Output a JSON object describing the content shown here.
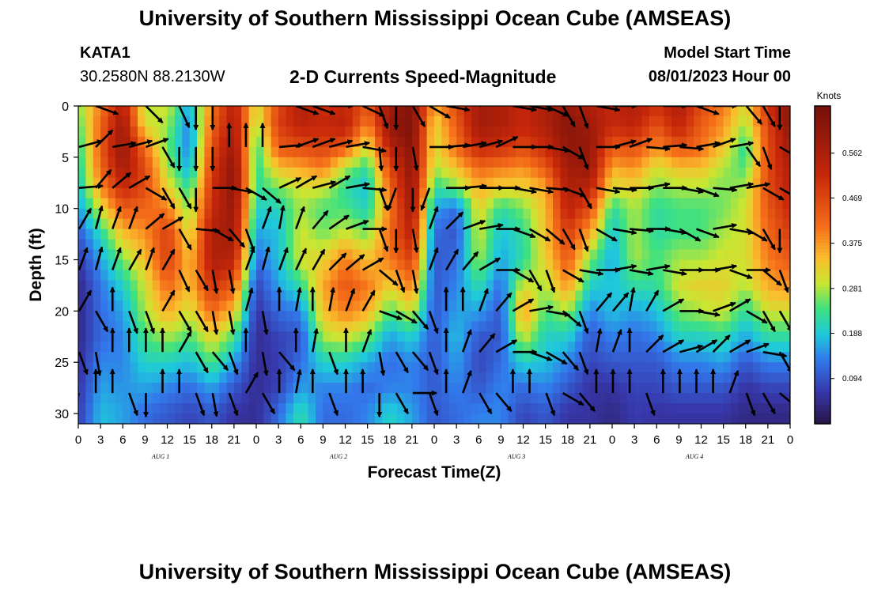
{
  "header": {
    "title": "University of Southern Mississippi Ocean Cube (AMSEAS)",
    "station": "KATA1",
    "coords": "30.2580N  88.2130W",
    "subtitle": "2-D Currents Speed-Magnitude",
    "model_start_label": "Model Start Time",
    "model_start_value": "08/01/2023 Hour 00"
  },
  "footer": {
    "title": "University of Southern Mississippi Ocean Cube (AMSEAS)"
  },
  "chart_data": {
    "type": "heatmap",
    "title": "2-D Currents Speed-Magnitude",
    "xlabel": "Forecast Time(Z)",
    "ylabel": "Depth (ft)",
    "x_ticks": [
      "0",
      "3",
      "6",
      "9",
      "12",
      "15",
      "18",
      "21",
      "0",
      "3",
      "6",
      "9",
      "12",
      "15",
      "18",
      "21",
      "0",
      "3",
      "6",
      "9",
      "12",
      "15",
      "18",
      "21",
      "0",
      "3",
      "6",
      "9",
      "12",
      "15",
      "18",
      "21",
      "0"
    ],
    "day_labels": [
      "AUG 1",
      "AUG 2",
      "AUG 3",
      "AUG 4"
    ],
    "y_ticks": [
      "0",
      "5",
      "10",
      "15",
      "20",
      "25",
      "30"
    ],
    "x_range_hours": [
      0,
      96
    ],
    "y_range_ft": [
      0,
      31
    ],
    "colorbar": {
      "unit": "Knots",
      "ticks": [
        "0.094",
        "0.188",
        "0.281",
        "0.375",
        "0.469",
        "0.562"
      ],
      "tick_values": [
        0.094,
        0.188,
        0.281,
        0.375,
        0.469,
        0.562
      ],
      "range": [
        0.0,
        0.66
      ]
    },
    "depth_levels_ft": [
      0,
      1.5,
      3,
      4.5,
      6,
      8,
      10,
      12.5,
      15,
      17.5,
      20,
      22.5,
      25,
      27.5,
      30,
      31
    ],
    "speed_timeseries": [
      {
        "hour": 0,
        "speeds": [
          0.26,
          0.24,
          0.22,
          0.21,
          0.2,
          0.18,
          0.15,
          0.1,
          0.06,
          0.04,
          0.04,
          0.04,
          0.05,
          0.06,
          0.07,
          0.07
        ]
      },
      {
        "hour": 3,
        "speeds": [
          0.4,
          0.42,
          0.43,
          0.43,
          0.42,
          0.38,
          0.3,
          0.21,
          0.16,
          0.13,
          0.12,
          0.12,
          0.14,
          0.16,
          0.18,
          0.18
        ]
      },
      {
        "hour": 6,
        "speeds": [
          0.55,
          0.58,
          0.6,
          0.6,
          0.58,
          0.52,
          0.44,
          0.34,
          0.26,
          0.2,
          0.16,
          0.14,
          0.14,
          0.15,
          0.16,
          0.16
        ]
      },
      {
        "hour": 9,
        "speeds": [
          0.28,
          0.3,
          0.36,
          0.42,
          0.46,
          0.46,
          0.42,
          0.38,
          0.34,
          0.3,
          0.28,
          0.24,
          0.2,
          0.16,
          0.12,
          0.12
        ]
      },
      {
        "hour": 12,
        "speeds": [
          0.3,
          0.28,
          0.26,
          0.26,
          0.28,
          0.32,
          0.4,
          0.48,
          0.48,
          0.42,
          0.36,
          0.28,
          0.2,
          0.14,
          0.1,
          0.1
        ]
      },
      {
        "hour": 15,
        "speeds": [
          0.16,
          0.14,
          0.13,
          0.14,
          0.16,
          0.22,
          0.26,
          0.3,
          0.34,
          0.34,
          0.3,
          0.24,
          0.18,
          0.12,
          0.08,
          0.08
        ]
      },
      {
        "hour": 18,
        "speeds": [
          0.4,
          0.42,
          0.44,
          0.46,
          0.48,
          0.5,
          0.52,
          0.56,
          0.56,
          0.5,
          0.42,
          0.32,
          0.24,
          0.16,
          0.1,
          0.1
        ]
      },
      {
        "hour": 21,
        "speeds": [
          0.55,
          0.56,
          0.58,
          0.6,
          0.62,
          0.62,
          0.6,
          0.58,
          0.54,
          0.44,
          0.34,
          0.24,
          0.16,
          0.1,
          0.06,
          0.06
        ]
      },
      {
        "hour": 24,
        "speeds": [
          0.3,
          0.28,
          0.24,
          0.22,
          0.22,
          0.22,
          0.2,
          0.16,
          0.12,
          0.08,
          0.06,
          0.05,
          0.05,
          0.05,
          0.05,
          0.05
        ]
      },
      {
        "hour": 27,
        "speeds": [
          0.46,
          0.48,
          0.46,
          0.42,
          0.34,
          0.26,
          0.2,
          0.18,
          0.18,
          0.16,
          0.12,
          0.08,
          0.07,
          0.08,
          0.12,
          0.12
        ]
      },
      {
        "hour": 30,
        "speeds": [
          0.56,
          0.54,
          0.5,
          0.44,
          0.36,
          0.3,
          0.28,
          0.3,
          0.3,
          0.22,
          0.14,
          0.1,
          0.12,
          0.16,
          0.22,
          0.22
        ]
      },
      {
        "hour": 33,
        "speeds": [
          0.5,
          0.52,
          0.5,
          0.46,
          0.4,
          0.3,
          0.24,
          0.26,
          0.32,
          0.36,
          0.34,
          0.28,
          0.2,
          0.14,
          0.12,
          0.12
        ]
      },
      {
        "hour": 36,
        "speeds": [
          0.52,
          0.54,
          0.5,
          0.4,
          0.28,
          0.22,
          0.24,
          0.3,
          0.4,
          0.44,
          0.4,
          0.3,
          0.2,
          0.14,
          0.12,
          0.12
        ]
      },
      {
        "hour": 39,
        "speeds": [
          0.44,
          0.4,
          0.34,
          0.28,
          0.22,
          0.18,
          0.2,
          0.26,
          0.34,
          0.4,
          0.36,
          0.26,
          0.16,
          0.12,
          0.14,
          0.14
        ]
      },
      {
        "hour": 42,
        "speeds": [
          0.58,
          0.6,
          0.58,
          0.52,
          0.46,
          0.42,
          0.4,
          0.42,
          0.4,
          0.32,
          0.24,
          0.16,
          0.12,
          0.14,
          0.2,
          0.2
        ]
      },
      {
        "hour": 45,
        "speeds": [
          0.64,
          0.64,
          0.64,
          0.62,
          0.62,
          0.6,
          0.58,
          0.54,
          0.48,
          0.4,
          0.3,
          0.2,
          0.14,
          0.14,
          0.16,
          0.16
        ]
      },
      {
        "hour": 48,
        "speeds": [
          0.36,
          0.32,
          0.3,
          0.3,
          0.28,
          0.22,
          0.16,
          0.12,
          0.1,
          0.1,
          0.1,
          0.1,
          0.1,
          0.1,
          0.1,
          0.1
        ]
      },
      {
        "hour": 51,
        "speeds": [
          0.46,
          0.44,
          0.42,
          0.4,
          0.34,
          0.26,
          0.12,
          0.1,
          0.12,
          0.14,
          0.16,
          0.18,
          0.16,
          0.14,
          0.12,
          0.12
        ]
      },
      {
        "hour": 54,
        "speeds": [
          0.58,
          0.58,
          0.56,
          0.5,
          0.42,
          0.36,
          0.32,
          0.3,
          0.28,
          0.22,
          0.16,
          0.1,
          0.08,
          0.1,
          0.14,
          0.14
        ]
      },
      {
        "hour": 57,
        "speeds": [
          0.56,
          0.56,
          0.54,
          0.48,
          0.4,
          0.32,
          0.22,
          0.18,
          0.16,
          0.12,
          0.1,
          0.1,
          0.12,
          0.14,
          0.14,
          0.14
        ]
      },
      {
        "hour": 60,
        "speeds": [
          0.52,
          0.52,
          0.5,
          0.44,
          0.38,
          0.32,
          0.26,
          0.22,
          0.22,
          0.3,
          0.38,
          0.3,
          0.2,
          0.12,
          0.08,
          0.08
        ]
      },
      {
        "hour": 63,
        "speeds": [
          0.56,
          0.56,
          0.54,
          0.5,
          0.44,
          0.36,
          0.34,
          0.34,
          0.32,
          0.28,
          0.24,
          0.2,
          0.18,
          0.14,
          0.1,
          0.1
        ]
      },
      {
        "hour": 66,
        "speeds": [
          0.6,
          0.62,
          0.62,
          0.6,
          0.58,
          0.56,
          0.54,
          0.48,
          0.44,
          0.38,
          0.28,
          0.2,
          0.14,
          0.1,
          0.06,
          0.06
        ]
      },
      {
        "hour": 69,
        "speeds": [
          0.56,
          0.58,
          0.6,
          0.6,
          0.6,
          0.54,
          0.46,
          0.36,
          0.26,
          0.2,
          0.14,
          0.1,
          0.08,
          0.06,
          0.06,
          0.06
        ]
      },
      {
        "hour": 72,
        "speeds": [
          0.52,
          0.52,
          0.48,
          0.42,
          0.36,
          0.3,
          0.22,
          0.18,
          0.16,
          0.18,
          0.18,
          0.14,
          0.1,
          0.06,
          0.04,
          0.04
        ]
      },
      {
        "hour": 75,
        "speeds": [
          0.56,
          0.54,
          0.5,
          0.44,
          0.38,
          0.32,
          0.28,
          0.28,
          0.28,
          0.22,
          0.16,
          0.12,
          0.1,
          0.08,
          0.07,
          0.07
        ]
      },
      {
        "hour": 78,
        "speeds": [
          0.5,
          0.46,
          0.42,
          0.36,
          0.3,
          0.26,
          0.22,
          0.22,
          0.24,
          0.22,
          0.18,
          0.14,
          0.1,
          0.08,
          0.06,
          0.06
        ]
      },
      {
        "hour": 81,
        "speeds": [
          0.56,
          0.54,
          0.5,
          0.42,
          0.34,
          0.28,
          0.24,
          0.24,
          0.28,
          0.3,
          0.26,
          0.2,
          0.14,
          0.1,
          0.06,
          0.06
        ]
      },
      {
        "hour": 84,
        "speeds": [
          0.46,
          0.44,
          0.42,
          0.4,
          0.34,
          0.28,
          0.24,
          0.24,
          0.28,
          0.32,
          0.28,
          0.2,
          0.14,
          0.1,
          0.06,
          0.06
        ]
      },
      {
        "hour": 87,
        "speeds": [
          0.4,
          0.38,
          0.36,
          0.32,
          0.28,
          0.26,
          0.26,
          0.28,
          0.3,
          0.32,
          0.3,
          0.22,
          0.16,
          0.1,
          0.06,
          0.06
        ]
      },
      {
        "hour": 90,
        "speeds": [
          0.3,
          0.28,
          0.24,
          0.22,
          0.24,
          0.28,
          0.3,
          0.3,
          0.3,
          0.28,
          0.22,
          0.16,
          0.1,
          0.06,
          0.04,
          0.04
        ]
      },
      {
        "hour": 93,
        "speeds": [
          0.5,
          0.48,
          0.46,
          0.46,
          0.46,
          0.46,
          0.44,
          0.42,
          0.4,
          0.36,
          0.3,
          0.22,
          0.14,
          0.08,
          0.04,
          0.04
        ]
      },
      {
        "hour": 96,
        "speeds": [
          0.62,
          0.62,
          0.6,
          0.58,
          0.56,
          0.54,
          0.52,
          0.48,
          0.44,
          0.38,
          0.3,
          0.22,
          0.14,
          0.08,
          0.04,
          0.04
        ]
      }
    ],
    "vector_depths_ft": [
      0,
      4,
      8,
      12,
      16,
      20,
      24,
      28
    ],
    "vector_hours": [
      0,
      2.25,
      4.5,
      6.75,
      9,
      11.25,
      13.5,
      15.75,
      18,
      20.25,
      22.5,
      24.75,
      27,
      29.25,
      31.5,
      33.75,
      36,
      38.25,
      40.5,
      42.75,
      45,
      47.25,
      49.5,
      51.75,
      54,
      56.25,
      58.5,
      60.75,
      63,
      65.25,
      67.5,
      69.75,
      72,
      74.25,
      76.5,
      78.75,
      81,
      83.25,
      85.5,
      87.75,
      90,
      92.25,
      94.5
    ],
    "vector_directions_deg": [
      [
        70,
        110,
        60,
        20,
        135,
        30,
        155,
        180,
        180,
        0,
        0,
        0,
        0,
        110,
        110,
        90,
        70,
        115,
        160,
        180,
        150,
        120,
        100,
        0,
        75,
        60,
        100,
        100,
        115,
        150,
        160,
        100,
        90,
        60,
        60,
        90,
        90,
        110,
        90,
        60,
        140,
        150,
        180
      ],
      [
        75,
        45,
        80,
        75,
        70,
        150,
        180,
        180,
        180,
        0,
        0,
        0,
        85,
        70,
        70,
        75,
        80,
        100,
        175,
        180,
        170,
        90,
        85,
        80,
        75,
        65,
        90,
        90,
        100,
        120,
        160,
        90,
        75,
        70,
        95,
        85,
        95,
        80,
        70,
        80,
        145,
        160,
        120
      ],
      [
        85,
        40,
        50,
        60,
        120,
        150,
        150,
        180,
        90,
        100,
        120,
        130,
        65,
        60,
        75,
        60,
        80,
        95,
        160,
        200,
        180,
        200,
        90,
        85,
        90,
        90,
        100,
        100,
        95,
        110,
        150,
        100,
        95,
        90,
        80,
        90,
        100,
        110,
        95,
        80,
        80,
        120,
        120
      ],
      [
        30,
        15,
        20,
        20,
        50,
        60,
        150,
        95,
        120,
        140,
        160,
        20,
        10,
        20,
        40,
        55,
        70,
        90,
        160,
        180,
        170,
        20,
        45,
        70,
        80,
        90,
        110,
        120,
        130,
        150,
        160,
        120,
        100,
        95,
        90,
        100,
        120,
        110,
        80,
        100,
        120,
        150,
        180
      ],
      [
        20,
        15,
        20,
        30,
        20,
        30,
        155,
        150,
        170,
        170,
        20,
        15,
        20,
        25,
        30,
        45,
        50,
        60,
        130,
        160,
        170,
        20,
        30,
        40,
        60,
        90,
        120,
        150,
        160,
        120,
        100,
        90,
        80,
        100,
        80,
        100,
        90,
        90,
        80,
        110,
        90,
        130,
        160
      ],
      [
        30,
        150,
        0,
        160,
        160,
        30,
        150,
        150,
        170,
        170,
        15,
        170,
        0,
        10,
        0,
        10,
        20,
        30,
        110,
        120,
        140,
        160,
        0,
        0,
        20,
        40,
        60,
        80,
        100,
        130,
        160,
        40,
        40,
        10,
        30,
        60,
        90,
        100,
        70,
        60,
        120,
        150,
        150
      ],
      [
        160,
        170,
        0,
        0,
        0,
        0,
        30,
        150,
        140,
        160,
        0,
        170,
        140,
        0,
        10,
        160,
        0,
        20,
        170,
        150,
        140,
        160,
        0,
        20,
        40,
        60,
        90,
        110,
        120,
        140,
        160,
        10,
        20,
        0,
        45,
        60,
        75,
        60,
        45,
        60,
        70,
        100,
        150
      ],
      [
        200,
        0,
        0,
        160,
        180,
        0,
        0,
        160,
        170,
        160,
        30,
        150,
        0,
        10,
        0,
        160,
        0,
        0,
        180,
        150,
        90,
        160,
        0,
        20,
        150,
        140,
        0,
        0,
        160,
        120,
        140,
        0,
        0,
        0,
        160,
        0,
        0,
        0,
        0,
        20,
        160,
        150,
        130
      ]
    ]
  }
}
